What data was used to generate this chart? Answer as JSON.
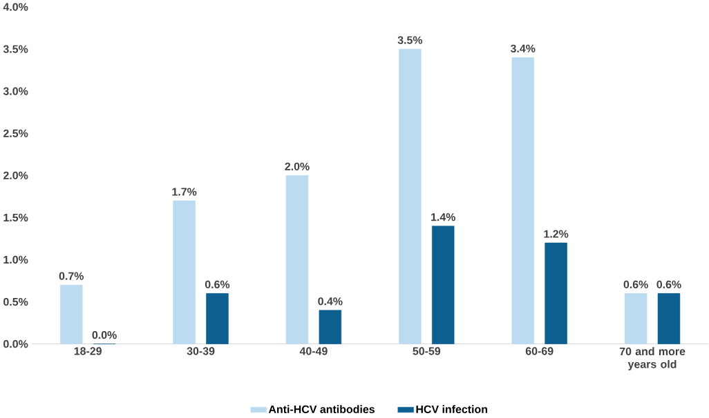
{
  "chart_data": {
    "type": "bar",
    "categories": [
      "18-29",
      "30-39",
      "40-49",
      "50-59",
      "60-69",
      "70 and more years old"
    ],
    "series": [
      {
        "name": "Anti-HCV antibodies",
        "color": "#bcdaf0",
        "values": [
          0.7,
          1.7,
          2.0,
          3.5,
          3.4,
          0.6
        ],
        "value_labels": [
          "0.7%",
          "1.7%",
          "2.0%",
          "3.5%",
          "3.4%",
          "0.6%"
        ]
      },
      {
        "name": "HCV infection",
        "color": "#0d5f8f",
        "values": [
          0.0,
          0.6,
          0.4,
          1.4,
          1.2,
          0.6
        ],
        "value_labels": [
          "0.0%",
          "0.6%",
          "0.4%",
          "1.4%",
          "1.2%",
          "0.6%"
        ]
      }
    ],
    "ylim": [
      0,
      4.0
    ],
    "yticks": [
      {
        "value": 0,
        "label": "0.0%"
      },
      {
        "value": 0.5,
        "label": "0.5%"
      },
      {
        "value": 1.0,
        "label": "1.0%"
      },
      {
        "value": 1.5,
        "label": "1.5%"
      },
      {
        "value": 2.0,
        "label": "2.0%"
      },
      {
        "value": 2.5,
        "label": "2.5%"
      },
      {
        "value": 3.0,
        "label": "3.0%"
      },
      {
        "value": 3.5,
        "label": "3.5%"
      },
      {
        "value": 4.0,
        "label": "4.0%"
      }
    ],
    "legend": "bottom"
  }
}
